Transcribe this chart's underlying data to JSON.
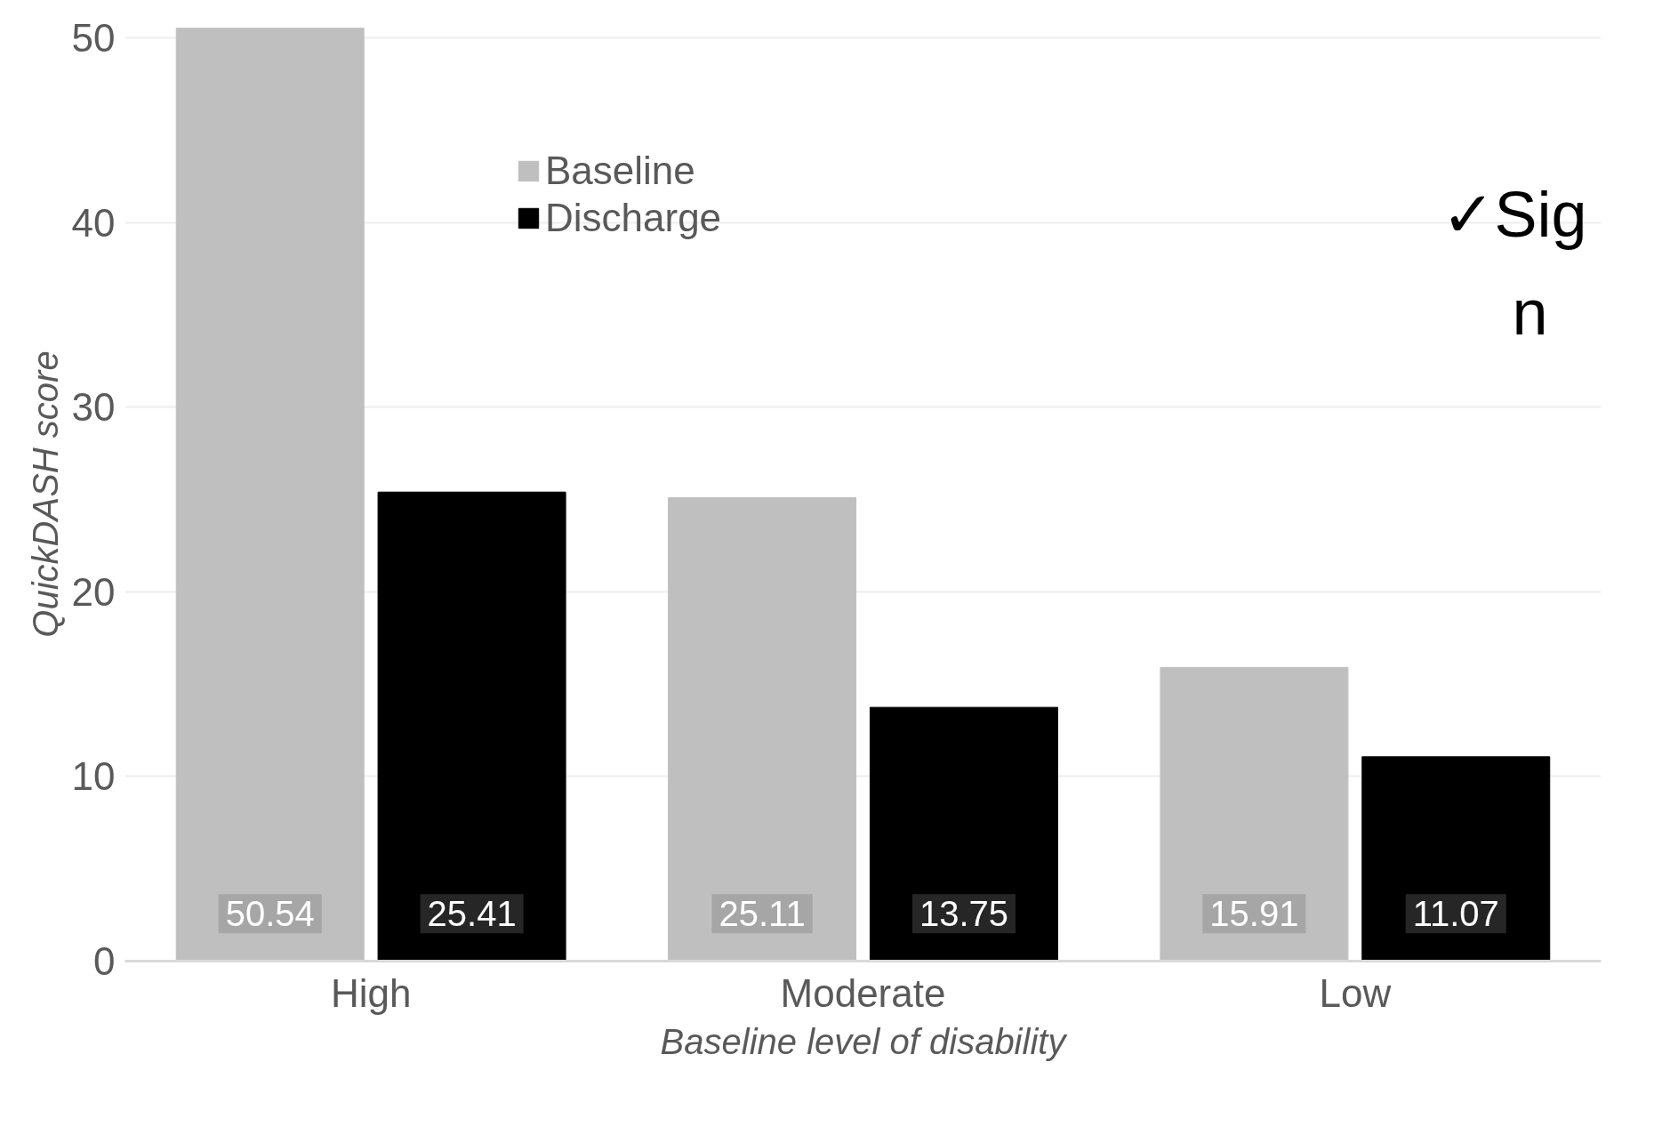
{
  "chart_data": {
    "type": "bar",
    "xlabel": "Baseline level of disability",
    "ylabel": "QuickDASH score",
    "categories": [
      "High",
      "Moderate",
      "Low"
    ],
    "series": [
      {
        "name": "Baseline",
        "color": "#bfbfbf",
        "values": [
          50.54,
          25.11,
          15.91
        ]
      },
      {
        "name": "Discharge",
        "color": "#000000",
        "values": [
          25.41,
          13.75,
          11.07
        ]
      }
    ],
    "ylim": [
      0,
      50.6
    ],
    "yticks": [
      0,
      10,
      20,
      30,
      40,
      50
    ],
    "grid": "y",
    "legend": "top left",
    "data_labels": true,
    "annotations": [
      "✓Sig",
      "n"
    ]
  }
}
